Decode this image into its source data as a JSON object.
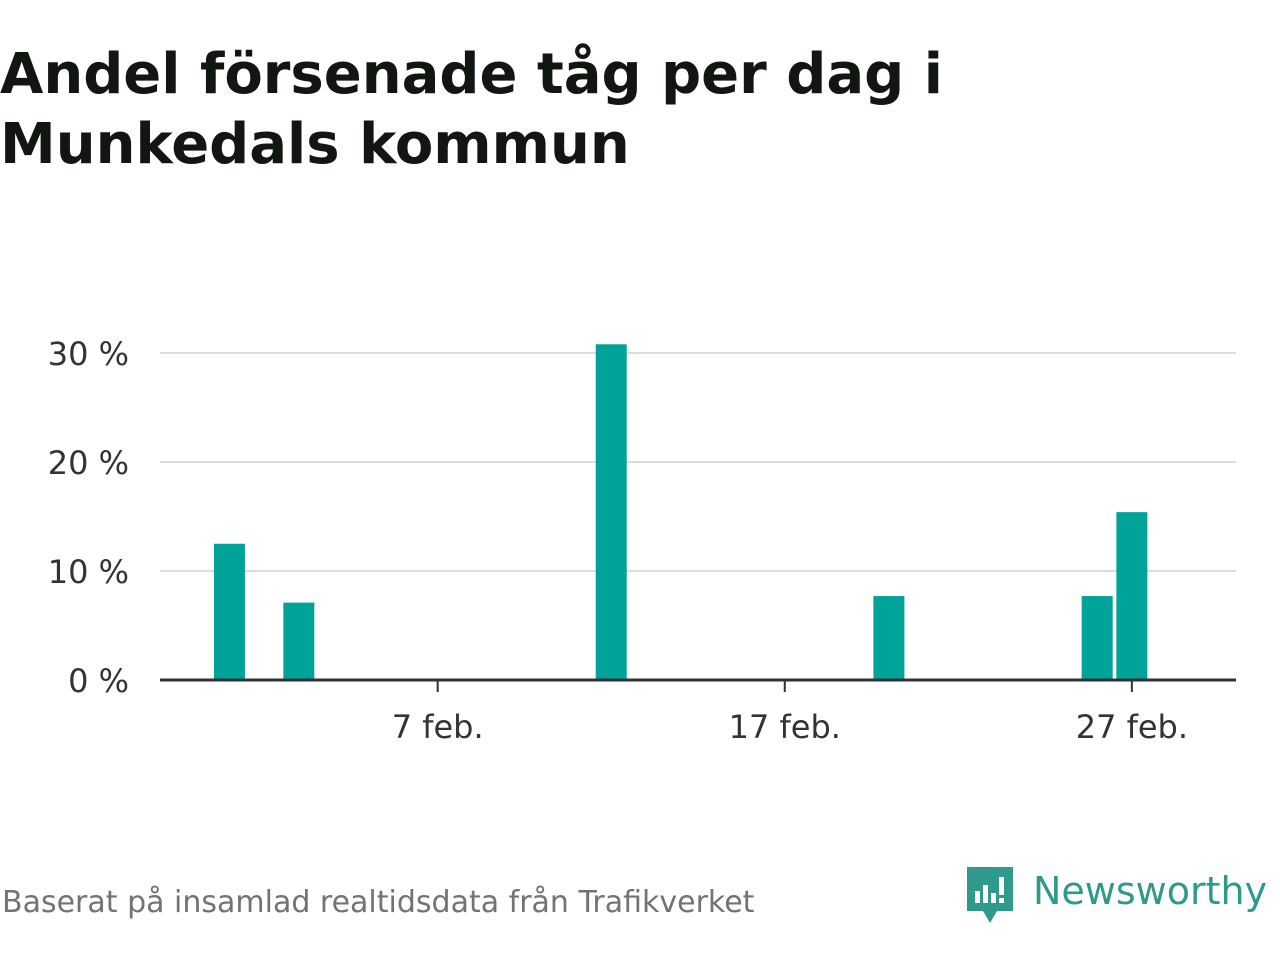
{
  "title_lines": [
    "Andel försenade tåg per dag i",
    "Munkedals kommun"
  ],
  "footer": {
    "source": "Baserat på insamlad realtidsdata från Trafikverket",
    "brand": "Newsworthy",
    "brand_icon": "newsworthy-logo-icon"
  },
  "colors": {
    "bar": "#00a39a",
    "grid": "#dcdcdc",
    "axis": "#333333",
    "text": "#333333",
    "title": "#111611",
    "brand": "#2f9a8c"
  },
  "chart_data": {
    "type": "bar",
    "title": "Andel försenade tåg per dag i Munkedals kommun",
    "xlabel": "",
    "ylabel": "",
    "ylim": [
      0,
      30
    ],
    "y_ticks": [
      0,
      10,
      20,
      30
    ],
    "y_tick_labels": [
      "0 %",
      "10 %",
      "20 %",
      "30 %"
    ],
    "x_tick_labels": [
      {
        "date": "7 feb.",
        "day": 7
      },
      {
        "date": "17 feb.",
        "day": 17
      },
      {
        "date": "27 feb.",
        "day": 27
      }
    ],
    "x_range_days": [
      -1,
      30
    ],
    "grid": true,
    "legend": "none",
    "points": [
      {
        "date": "1 feb.",
        "day": 1,
        "value": 12.5
      },
      {
        "date": "3 feb.",
        "day": 3,
        "value": 7.1
      },
      {
        "date": "12 feb.",
        "day": 12,
        "value": 30.8
      },
      {
        "date": "20 feb.",
        "day": 20,
        "value": 7.7
      },
      {
        "date": "26 feb.",
        "day": 26,
        "value": 7.7
      },
      {
        "date": "27 feb.",
        "day": 27,
        "value": 15.4
      }
    ]
  }
}
